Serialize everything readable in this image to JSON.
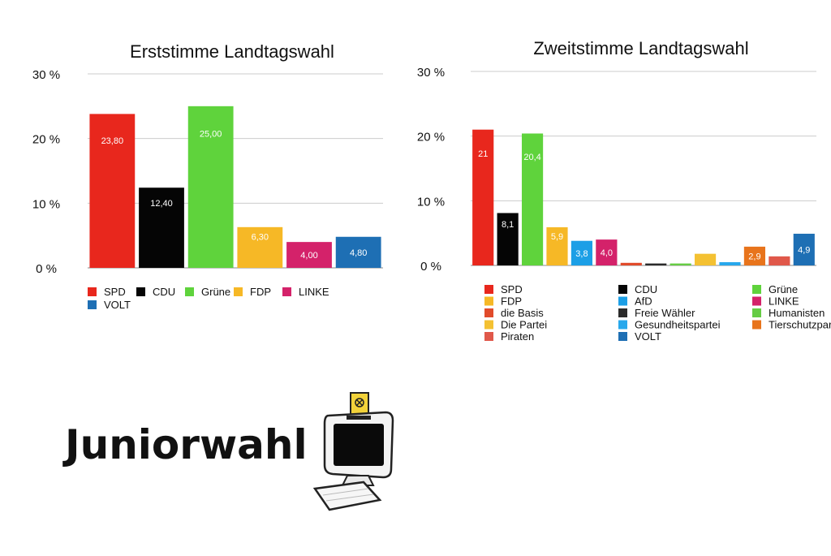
{
  "colors": {
    "SPD": "#e8271d",
    "CDU": "#050505",
    "Grüne": "#5fd33c",
    "FDP": "#f6b826",
    "LINKE": "#d4226a",
    "VOLT": "#1e6fb4",
    "AfD": "#1c9fe6",
    "die Basis": "#e14b2b",
    "Freie Wähler": "#2b2b2b",
    "Humanisten": "#66cc44",
    "Die Partei": "#f4c132",
    "Gesundheitspartei": "#27a8ec",
    "Tierschutzpartei": "#e8741c",
    "Piraten": "#e0584a",
    "grid": "#cccccc"
  },
  "logo": {
    "wordmark": "Juniorwahl",
    "icon": "computer-ballot-icon"
  },
  "chart_data": [
    {
      "type": "bar",
      "title": "Erststimme Landtagswahl",
      "categories": [
        "SPD",
        "CDU",
        "Grüne",
        "FDP",
        "LINKE",
        "VOLT"
      ],
      "values": [
        23.8,
        12.4,
        25.0,
        6.3,
        4.0,
        4.8
      ],
      "data_labels": [
        "23,80",
        "12,40",
        "25,00",
        "6,30",
        "4,00",
        "4,80"
      ],
      "ylim": [
        0,
        30
      ],
      "yticks": [
        0,
        10,
        20,
        30
      ],
      "ytick_labels": [
        "0 %",
        "10 %",
        "20 %",
        "30 %"
      ],
      "grid": true,
      "legend": [
        "SPD",
        "CDU",
        "Grüne",
        "FDP",
        "LINKE",
        "VOLT"
      ],
      "legend_position": "bottom"
    },
    {
      "type": "bar",
      "title": "Zweitstimme Landtagswahl",
      "categories": [
        "SPD",
        "CDU",
        "Grüne",
        "FDP",
        "AfD",
        "LINKE",
        "die Basis",
        "Freie Wähler",
        "Humanisten",
        "Die Partei",
        "Gesundheitspartei",
        "Tierschutzpartei",
        "Piraten",
        "VOLT"
      ],
      "values": [
        21,
        8.1,
        20.4,
        5.9,
        3.8,
        4.0,
        0.4,
        0.3,
        0.3,
        1.8,
        0.5,
        2.9,
        1.4,
        4.9
      ],
      "data_labels": [
        "21",
        "8,1",
        "20,4",
        "5,9",
        "3,8",
        "4,0",
        "",
        "",
        "",
        "",
        "",
        "2,9",
        "",
        "4,9"
      ],
      "ylim": [
        0,
        30
      ],
      "yticks": [
        0,
        10,
        20,
        30
      ],
      "ytick_labels": [
        "0 %",
        "10 %",
        "20 %",
        "30 %"
      ],
      "grid": true,
      "legend": [
        "SPD",
        "CDU",
        "Grüne",
        "FDP",
        "AfD",
        "LINKE",
        "die Basis",
        "Freie Wähler",
        "Humanisten",
        "Die Partei",
        "Gesundheitspartei",
        "Tierschutzpartei",
        "Piraten",
        "VOLT"
      ],
      "legend_position": "bottom"
    }
  ]
}
